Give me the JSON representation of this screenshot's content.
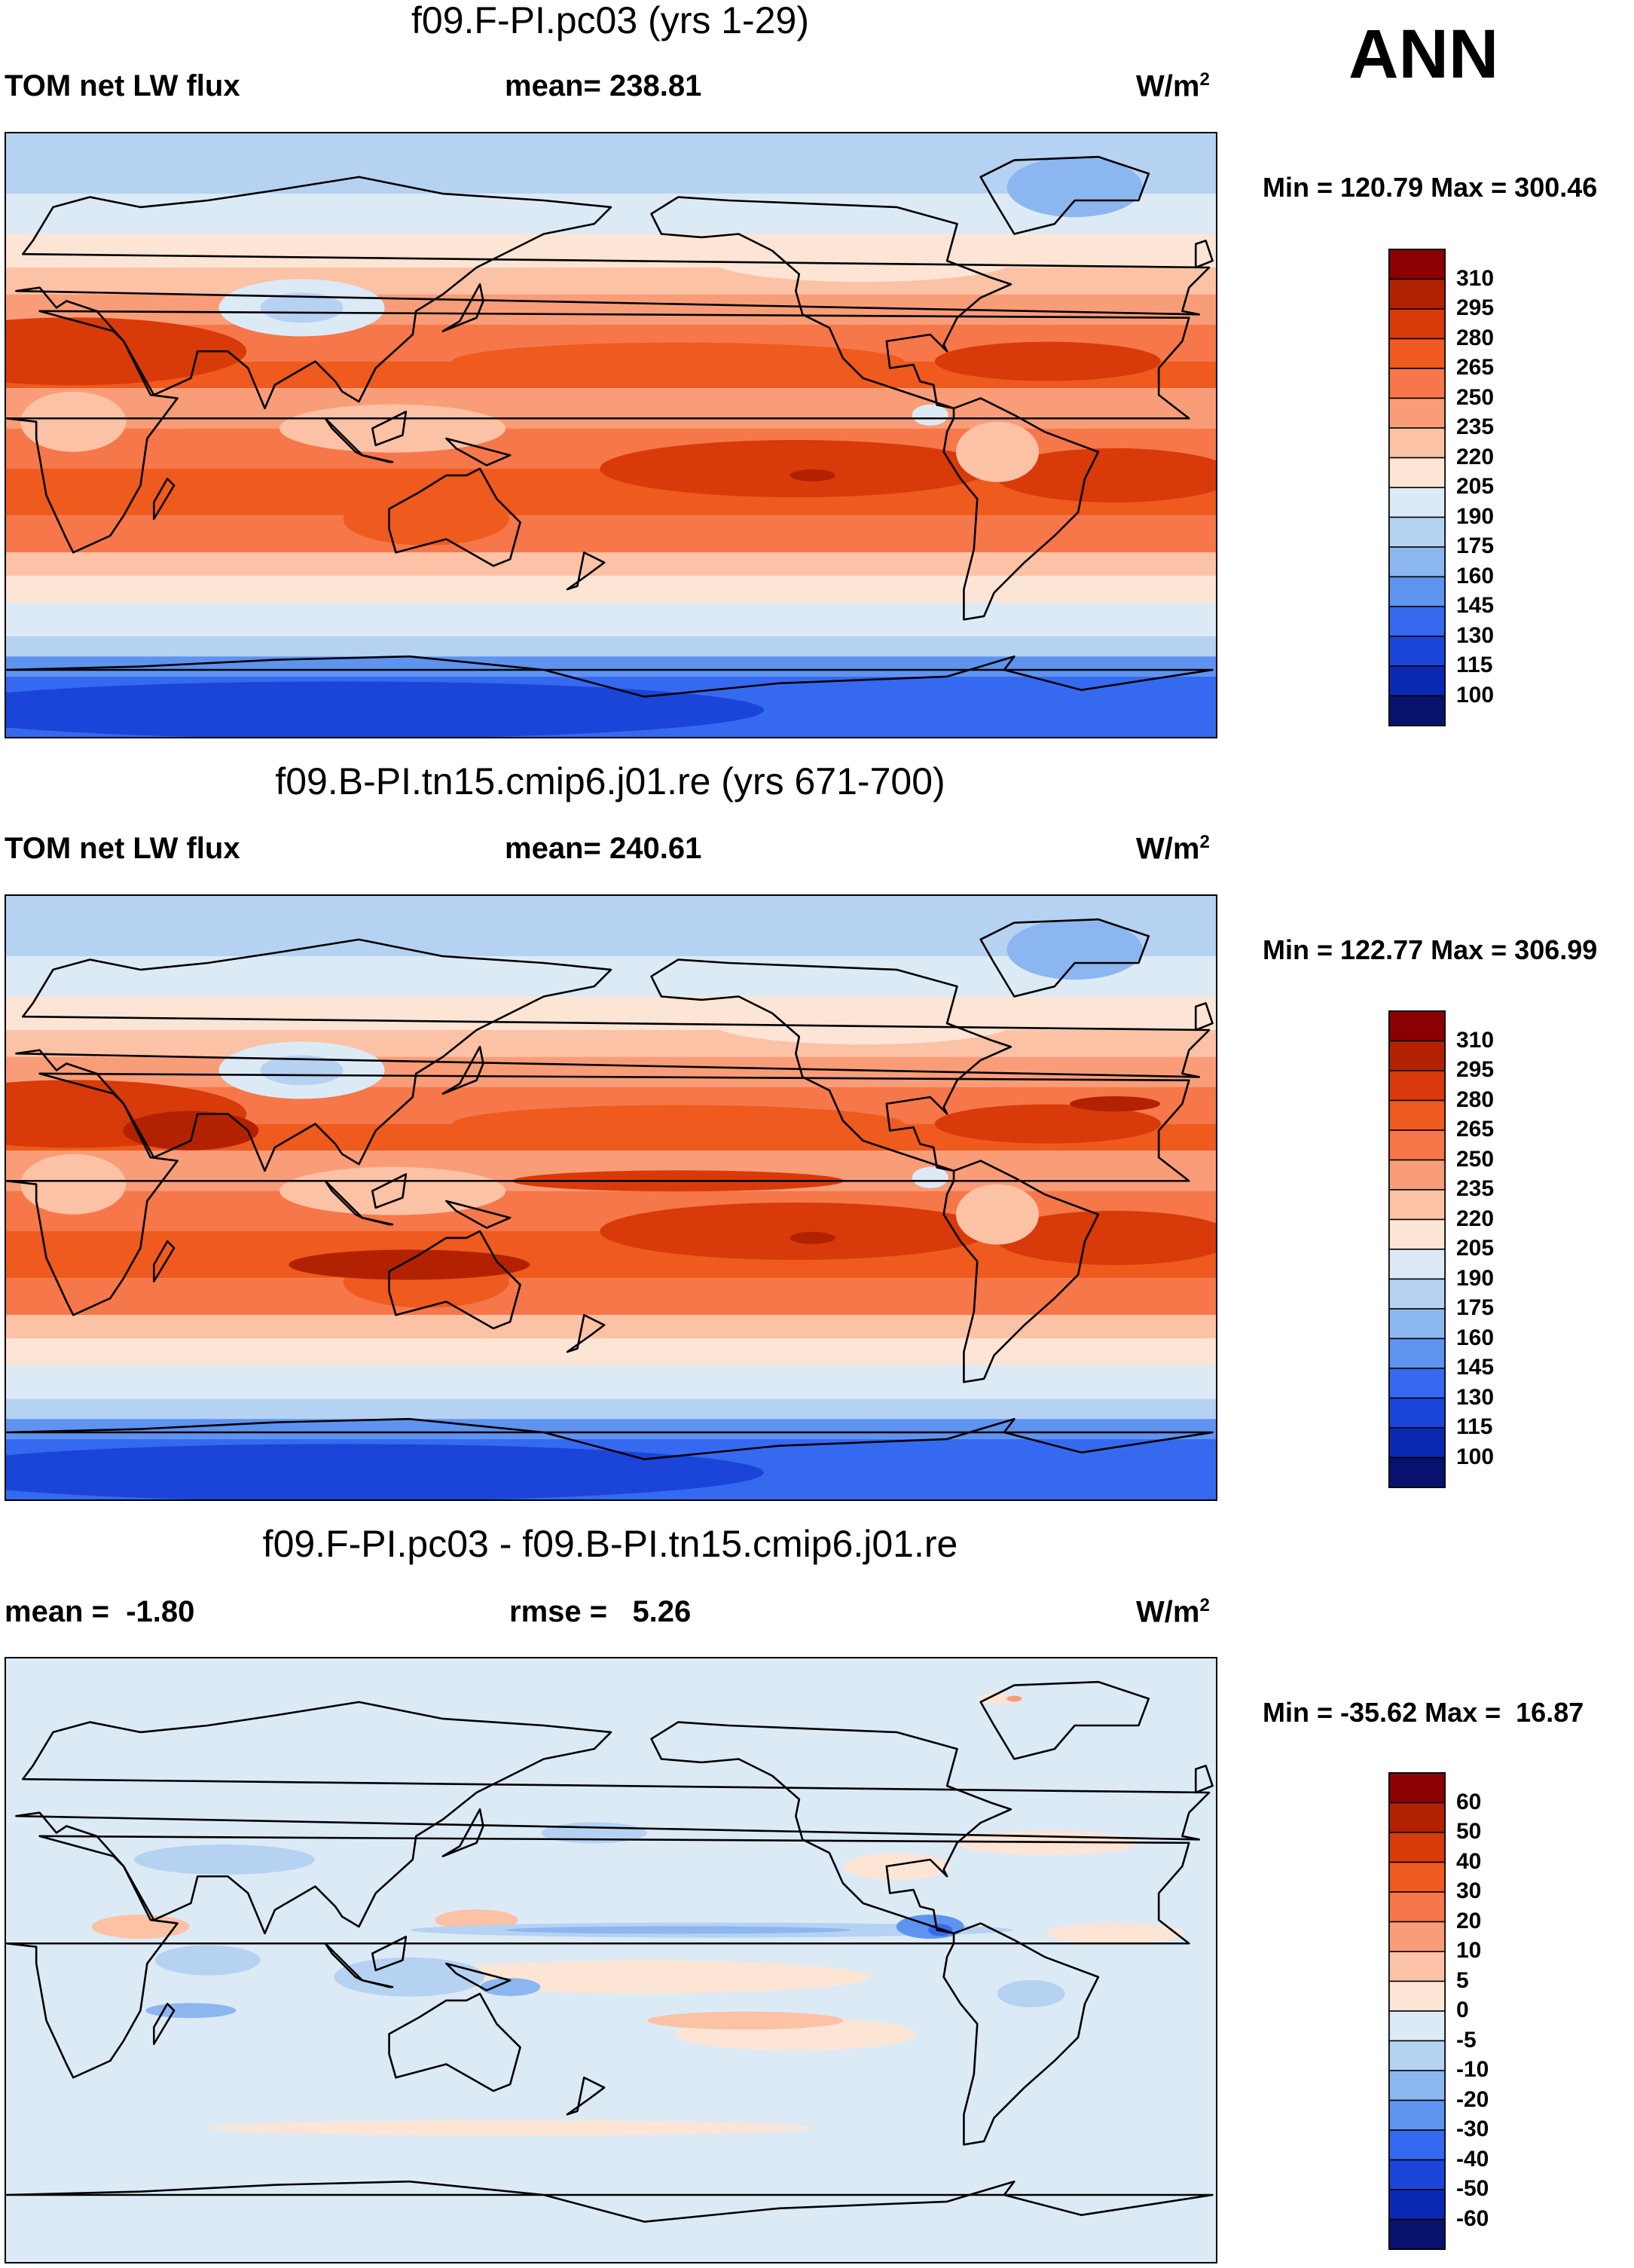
{
  "season": "ANN",
  "panels": [
    {
      "title": "f09.F-PI.pc03 (yrs 1-29)",
      "left_label": "TOM net LW flux",
      "center_label": "mean= 238.81",
      "units_base": "W/m",
      "units_exp": "2",
      "minmax": "Min = 120.79 Max = 300.46"
    },
    {
      "title": "f09.B-PI.tn15.cmip6.j01.re (yrs 671-700)",
      "left_label": "TOM net LW flux",
      "center_label": "mean= 240.61",
      "units_base": "W/m",
      "units_exp": "2",
      "minmax": "Min = 122.77 Max = 306.99"
    },
    {
      "title": "f09.F-PI.pc03 - f09.B-PI.tn15.cmip6.j01.re",
      "left_label": "mean =  -1.80",
      "center_label": "rmse =   5.26",
      "units_base": "W/m",
      "units_exp": "2",
      "minmax": "Min = -35.62 Max =  16.87"
    }
  ],
  "chart_data": [
    {
      "type": "heatmap",
      "title": "f09.F-PI.pc03 (yrs 1-29)",
      "variable": "TOM net LW flux",
      "units": "W/m2",
      "mean": 238.81,
      "min": 120.79,
      "max": 300.46,
      "colorbar_levels": [
        310,
        295,
        280,
        265,
        250,
        235,
        220,
        205,
        190,
        175,
        160,
        145,
        130,
        115,
        100
      ],
      "colorbar_colors": [
        "#8b0000",
        "#b22200",
        "#d83a0a",
        "#ef5a1e",
        "#f6774a",
        "#f99d78",
        "#fcc2a6",
        "#fde5d6",
        "#dceaf6",
        "#b6d2f2",
        "#8cb6f0",
        "#5e93f0",
        "#356af0",
        "#1a45d8",
        "#0b28b4",
        "#06126e"
      ]
    },
    {
      "type": "heatmap",
      "title": "f09.B-PI.tn15.cmip6.j01.re (yrs 671-700)",
      "variable": "TOM net LW flux",
      "units": "W/m2",
      "mean": 240.61,
      "min": 122.77,
      "max": 306.99,
      "colorbar_levels": [
        310,
        295,
        280,
        265,
        250,
        235,
        220,
        205,
        190,
        175,
        160,
        145,
        130,
        115,
        100
      ],
      "colorbar_colors": [
        "#8b0000",
        "#b22200",
        "#d83a0a",
        "#ef5a1e",
        "#f6774a",
        "#f99d78",
        "#fcc2a6",
        "#fde5d6",
        "#dceaf6",
        "#b6d2f2",
        "#8cb6f0",
        "#5e93f0",
        "#356af0",
        "#1a45d8",
        "#0b28b4",
        "#06126e"
      ]
    },
    {
      "type": "heatmap",
      "title": "f09.F-PI.pc03 - f09.B-PI.tn15.cmip6.j01.re",
      "units": "W/m2",
      "mean": -1.8,
      "rmse": 5.26,
      "min": -35.62,
      "max": 16.87,
      "colorbar_levels": [
        60,
        50,
        40,
        30,
        20,
        10,
        5,
        0,
        -5,
        -10,
        -20,
        -30,
        -40,
        -50,
        -60
      ],
      "colorbar_colors": [
        "#8b0000",
        "#b22200",
        "#d83a0a",
        "#ef5a1e",
        "#f6774a",
        "#f99d78",
        "#fcc2a6",
        "#fde5d6",
        "#dceaf6",
        "#b6d2f2",
        "#8cb6f0",
        "#5e93f0",
        "#356af0",
        "#1a45d8",
        "#0b28b4",
        "#06126e"
      ]
    }
  ]
}
